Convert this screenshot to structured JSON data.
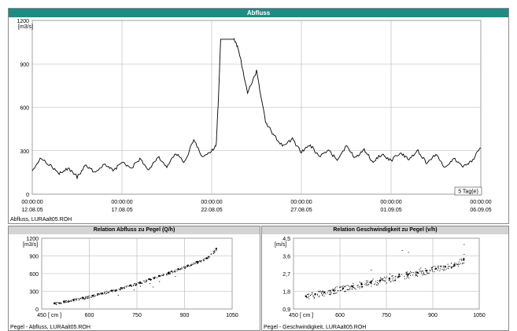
{
  "colors": {
    "titlebar": "#1e8c82",
    "subtitlebar": "#d4d4d4",
    "grid": "#b4b4b4",
    "series": "#000000"
  },
  "top_source": "Abfluss, LURAalt05.ROH",
  "bottom_left_source": "Pegel - Abfluss, LURAalt05.ROH",
  "bottom_right_source": "Pegel - Geschwindigkeit, LURAalt05.ROH",
  "chart_data": [
    {
      "type": "line",
      "title": "Abfluss",
      "ylabel": "[m3/s]",
      "ylim": [
        0,
        1200
      ],
      "yticks": [
        0,
        300,
        600,
        900,
        1200
      ],
      "xlim": [
        "2005-08-12",
        "2005-09-06"
      ],
      "xticks": [
        {
          "time": "00:00:00",
          "date": "12.08.05"
        },
        {
          "time": "00:00:00",
          "date": "17.08.05"
        },
        {
          "time": "00:00:00",
          "date": "22.08.05"
        },
        {
          "time": "00:00:00",
          "date": "27.08.05"
        },
        {
          "time": "00:00:00",
          "date": "01.09.05"
        },
        {
          "time": "00:00:00",
          "date": "06.09.05"
        }
      ],
      "interval_label": "5 Tag(e)",
      "grid": true,
      "x": [
        "2005-08-12 00:00",
        "2005-08-12 12:00",
        "2005-08-13 00:00",
        "2005-08-13 12:00",
        "2005-08-14 00:00",
        "2005-08-14 12:00",
        "2005-08-15 00:00",
        "2005-08-15 12:00",
        "2005-08-16 00:00",
        "2005-08-16 12:00",
        "2005-08-17 00:00",
        "2005-08-17 12:00",
        "2005-08-18 00:00",
        "2005-08-18 12:00",
        "2005-08-19 00:00",
        "2005-08-19 12:00",
        "2005-08-20 00:00",
        "2005-08-20 12:00",
        "2005-08-21 00:00",
        "2005-08-21 12:00",
        "2005-08-22 00:00",
        "2005-08-22 06:00",
        "2005-08-22 09:00",
        "2005-08-22 12:00",
        "2005-08-23 00:00",
        "2005-08-23 06:00",
        "2005-08-23 12:00",
        "2005-08-24 00:00",
        "2005-08-24 12:00",
        "2005-08-25 00:00",
        "2005-08-25 12:00",
        "2005-08-26 00:00",
        "2005-08-26 12:00",
        "2005-08-27 00:00",
        "2005-08-27 12:00",
        "2005-08-28 00:00",
        "2005-08-28 12:00",
        "2005-08-29 00:00",
        "2005-08-29 12:00",
        "2005-08-30 00:00",
        "2005-08-30 12:00",
        "2005-08-31 00:00",
        "2005-08-31 12:00",
        "2005-09-01 00:00",
        "2005-09-01 12:00",
        "2005-09-02 00:00",
        "2005-09-02 12:00",
        "2005-09-03 00:00",
        "2005-09-03 12:00",
        "2005-09-04 00:00",
        "2005-09-04 12:00",
        "2005-09-05 00:00",
        "2005-09-05 12:00",
        "2005-09-06 00:00"
      ],
      "y": [
        170,
        250,
        200,
        140,
        180,
        120,
        200,
        150,
        210,
        160,
        220,
        180,
        240,
        170,
        260,
        190,
        280,
        220,
        380,
        250,
        300,
        340,
        650,
        1070,
        1070,
        1070,
        1000,
        700,
        850,
        500,
        400,
        330,
        380,
        290,
        340,
        260,
        300,
        240,
        330,
        250,
        310,
        220,
        280,
        230,
        290,
        240,
        300,
        210,
        280,
        180,
        250,
        190,
        230,
        320
      ]
    },
    {
      "type": "scatter",
      "title": "Relation Abfluss zu Pegel (Q/h)",
      "ylabel": "[m3/s]",
      "xlabel": "[ cm ]",
      "xlim": [
        450,
        1050
      ],
      "ylim": [
        0,
        1200
      ],
      "xticks": [
        450,
        600,
        750,
        900,
        1050
      ],
      "yticks": [
        0,
        300,
        600,
        900,
        1200
      ],
      "grid": true,
      "x": [
        490,
        520,
        550,
        580,
        610,
        640,
        670,
        700,
        730,
        760,
        790,
        820,
        850,
        880,
        910,
        940,
        970,
        1000
      ],
      "y": [
        95,
        125,
        155,
        190,
        225,
        265,
        310,
        355,
        400,
        450,
        505,
        560,
        615,
        675,
        735,
        800,
        860,
        1020
      ]
    },
    {
      "type": "scatter",
      "title": "Relation Geschwindigkeit zu Pegel (v/h)",
      "ylabel": "[m/s]",
      "xlabel": "[ cm ]",
      "xlim": [
        450,
        1050
      ],
      "ylim": [
        0.9,
        4.5
      ],
      "xticks": [
        450,
        600,
        750,
        900,
        1050
      ],
      "yticks": [
        0.9,
        1.8,
        2.7,
        3.6,
        4.5
      ],
      "ytick_labels": [
        "0,9",
        "1,8",
        "2,7",
        "3,6",
        "4,5"
      ],
      "grid": true,
      "x": [
        490,
        520,
        550,
        580,
        610,
        640,
        670,
        700,
        730,
        760,
        790,
        820,
        850,
        880,
        910,
        940,
        970,
        1000
      ],
      "y": [
        1.55,
        1.65,
        1.75,
        1.85,
        1.95,
        2.05,
        2.15,
        2.25,
        2.35,
        2.45,
        2.55,
        2.65,
        2.75,
        2.85,
        2.95,
        3.05,
        3.15,
        3.4
      ]
    }
  ]
}
